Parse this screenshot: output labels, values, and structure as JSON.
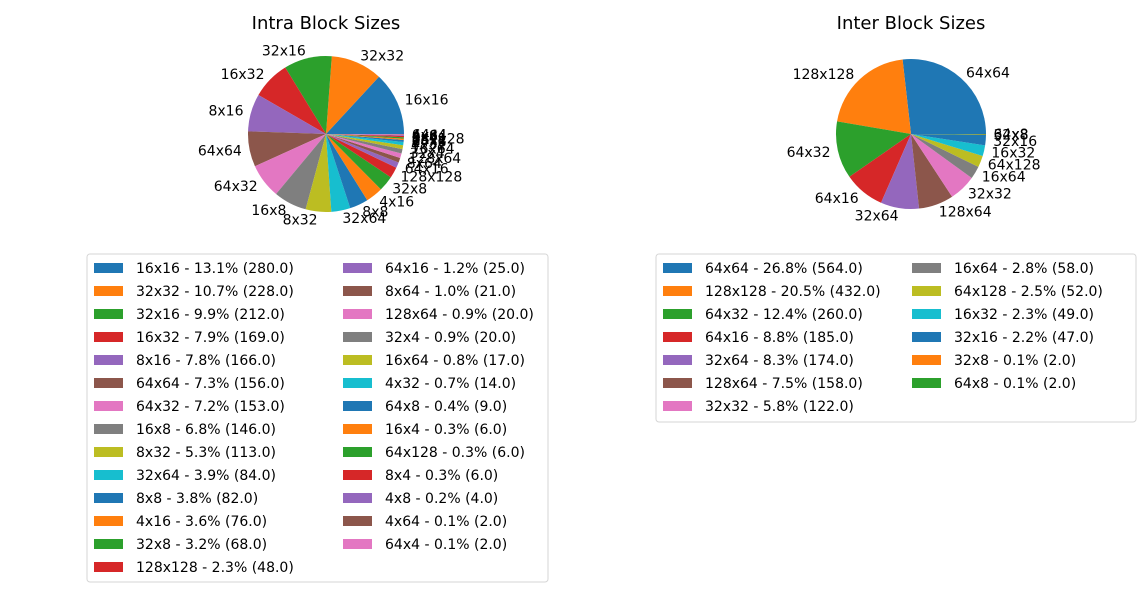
{
  "colors": [
    "#1f77b4",
    "#ff7f0e",
    "#2ca02c",
    "#d62728",
    "#9467bd",
    "#8c564b",
    "#e377c2",
    "#7f7f7f",
    "#bcbd22",
    "#17becf"
  ],
  "chart_data": [
    {
      "type": "pie",
      "title": "Intra Block Sizes",
      "legend_position": "below",
      "slices": [
        {
          "label": "16x16",
          "percent": "13.1%",
          "value": 280.0
        },
        {
          "label": "32x32",
          "percent": "10.7%",
          "value": 228.0
        },
        {
          "label": "32x16",
          "percent": "9.9%",
          "value": 212.0
        },
        {
          "label": "16x32",
          "percent": "7.9%",
          "value": 169.0
        },
        {
          "label": "8x16",
          "percent": "7.8%",
          "value": 166.0
        },
        {
          "label": "64x64",
          "percent": "7.3%",
          "value": 156.0
        },
        {
          "label": "64x32",
          "percent": "7.2%",
          "value": 153.0
        },
        {
          "label": "16x8",
          "percent": "6.8%",
          "value": 146.0
        },
        {
          "label": "8x32",
          "percent": "5.3%",
          "value": 113.0
        },
        {
          "label": "32x64",
          "percent": "3.9%",
          "value": 84.0
        },
        {
          "label": "8x8",
          "percent": "3.8%",
          "value": 82.0
        },
        {
          "label": "4x16",
          "percent": "3.6%",
          "value": 76.0
        },
        {
          "label": "32x8",
          "percent": "3.2%",
          "value": 68.0
        },
        {
          "label": "128x128",
          "percent": "2.3%",
          "value": 48.0
        },
        {
          "label": "64x16",
          "percent": "1.2%",
          "value": 25.0
        },
        {
          "label": "8x64",
          "percent": "1.0%",
          "value": 21.0
        },
        {
          "label": "128x64",
          "percent": "0.9%",
          "value": 20.0
        },
        {
          "label": "32x4",
          "percent": "0.9%",
          "value": 20.0
        },
        {
          "label": "16x64",
          "percent": "0.8%",
          "value": 17.0
        },
        {
          "label": "4x32",
          "percent": "0.7%",
          "value": 14.0
        },
        {
          "label": "64x8",
          "percent": "0.4%",
          "value": 9.0
        },
        {
          "label": "16x4",
          "percent": "0.3%",
          "value": 6.0
        },
        {
          "label": "64x128",
          "percent": "0.3%",
          "value": 6.0
        },
        {
          "label": "8x4",
          "percent": "0.3%",
          "value": 6.0
        },
        {
          "label": "4x8",
          "percent": "0.2%",
          "value": 4.0
        },
        {
          "label": "4x64",
          "percent": "0.1%",
          "value": 2.0
        },
        {
          "label": "64x4",
          "percent": "0.1%",
          "value": 2.0
        }
      ]
    },
    {
      "type": "pie",
      "title": "Inter Block Sizes",
      "legend_position": "below",
      "slices": [
        {
          "label": "64x64",
          "percent": "26.8%",
          "value": 564.0
        },
        {
          "label": "128x128",
          "percent": "20.5%",
          "value": 432.0
        },
        {
          "label": "64x32",
          "percent": "12.4%",
          "value": 260.0
        },
        {
          "label": "64x16",
          "percent": "8.8%",
          "value": 185.0
        },
        {
          "label": "32x64",
          "percent": "8.3%",
          "value": 174.0
        },
        {
          "label": "128x64",
          "percent": "7.5%",
          "value": 158.0
        },
        {
          "label": "32x32",
          "percent": "5.8%",
          "value": 122.0
        },
        {
          "label": "16x64",
          "percent": "2.8%",
          "value": 58.0
        },
        {
          "label": "64x128",
          "percent": "2.5%",
          "value": 52.0
        },
        {
          "label": "16x32",
          "percent": "2.3%",
          "value": 49.0
        },
        {
          "label": "32x16",
          "percent": "2.2%",
          "value": 47.0
        },
        {
          "label": "32x8",
          "percent": "0.1%",
          "value": 2.0
        },
        {
          "label": "64x8",
          "percent": "0.1%",
          "value": 2.0
        }
      ]
    }
  ]
}
